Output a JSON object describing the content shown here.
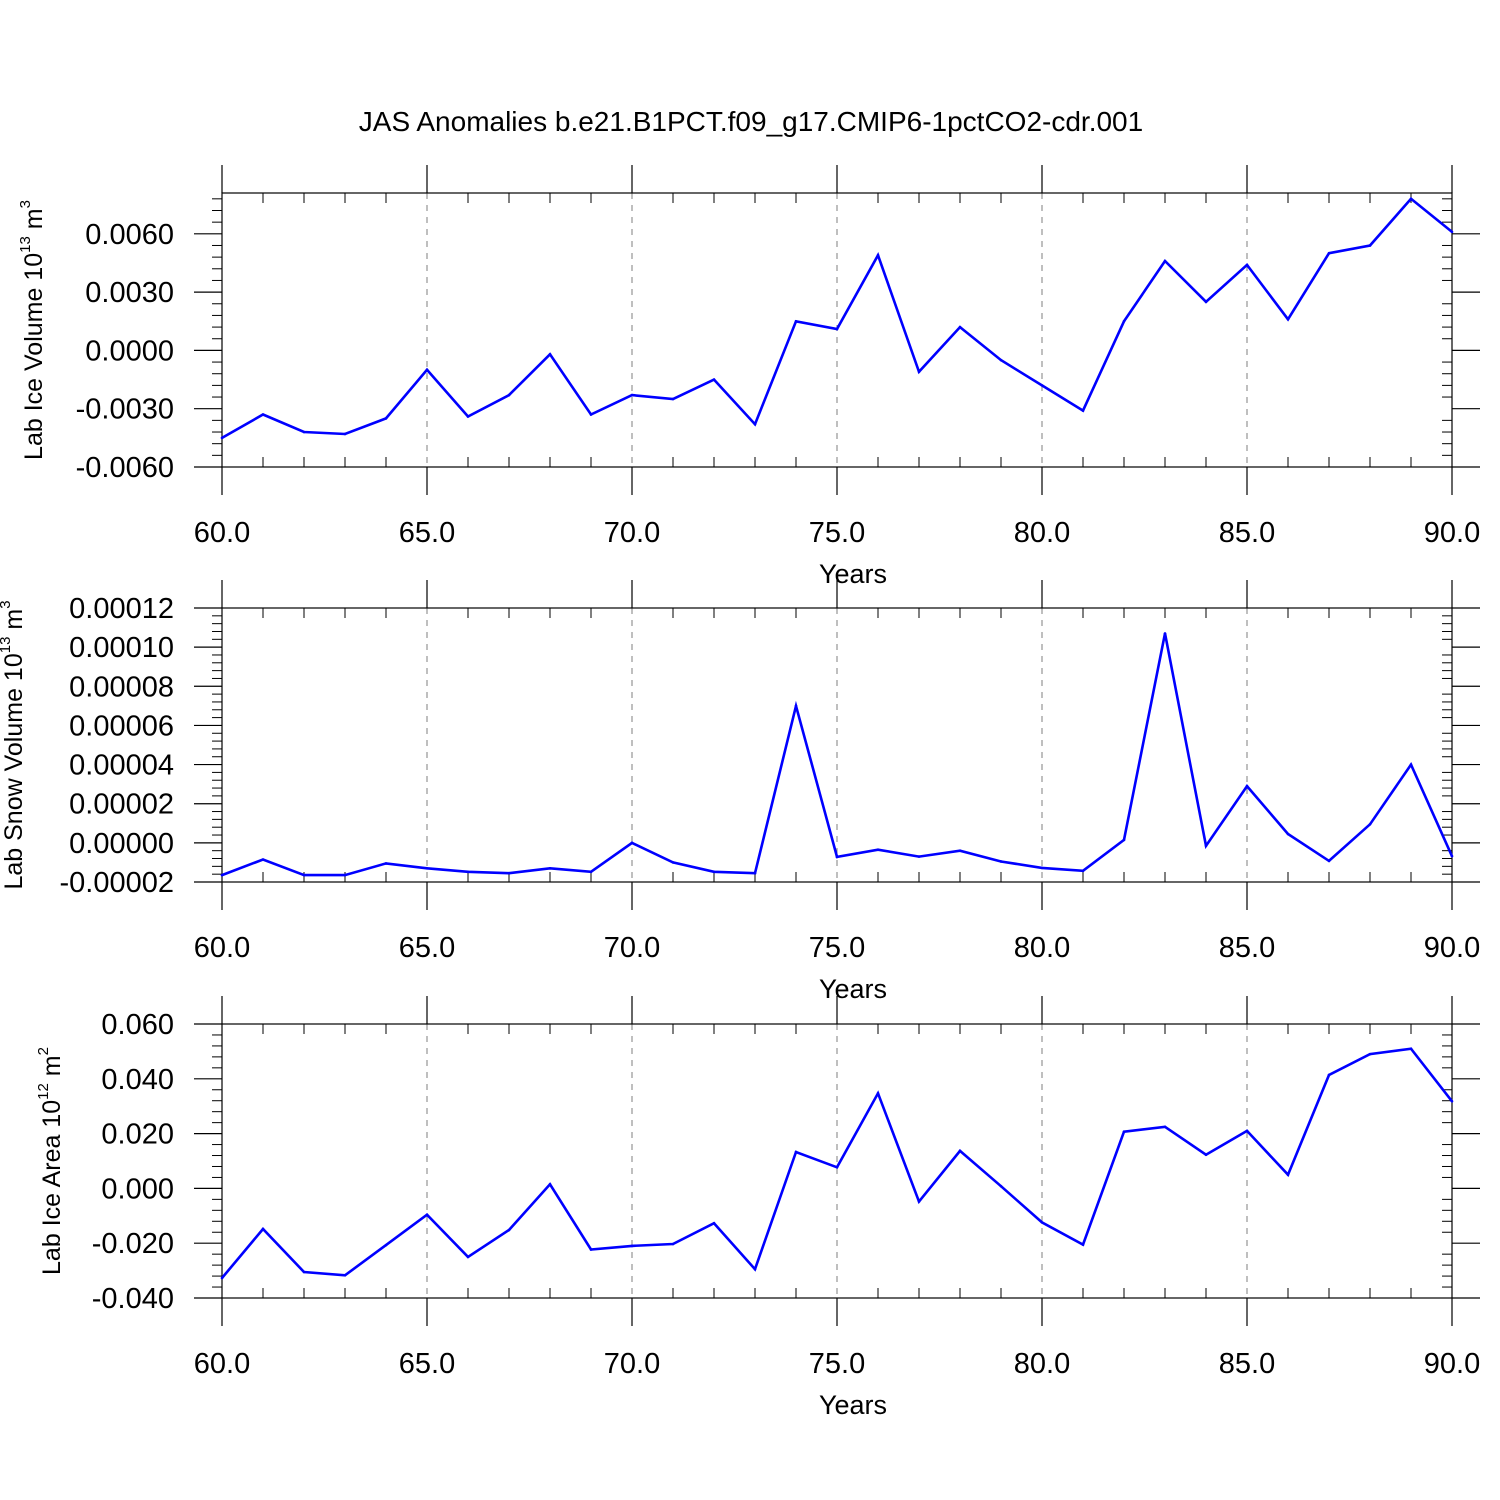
{
  "title": "JAS Anomalies b.e21.B1PCT.f09_g17.CMIP6-1pctCO2-cdr.001",
  "colors": {
    "series": "#0000ff",
    "axis": "#000000",
    "grid": "#7f7f7f"
  },
  "chart_data": [
    {
      "type": "line",
      "xlabel": "Years",
      "ylabel": {
        "text": "Lab Ice Volume 10",
        "exponent": "13",
        "unit": " m",
        "unit_exponent": "3"
      },
      "xlim": [
        60,
        90
      ],
      "ylim": [
        -0.006,
        0.0081
      ],
      "xticks": [
        60,
        65,
        70,
        75,
        80,
        85,
        90
      ],
      "xtick_labels": [
        "60.0",
        "65.0",
        "70.0",
        "75.0",
        "80.0",
        "85.0",
        "90.0"
      ],
      "yticks": [
        -0.006,
        -0.003,
        0.0,
        0.003,
        0.006
      ],
      "ytick_labels": [
        "-0.0060",
        "-0.0030",
        "0.0000",
        "0.0030",
        "0.0060"
      ],
      "grid": "vertical dashed",
      "x": [
        60,
        61,
        62,
        63,
        64,
        65,
        66,
        67,
        68,
        69,
        70,
        71,
        72,
        73,
        74,
        75,
        76,
        77,
        78,
        79,
        80,
        81,
        82,
        83,
        84,
        85,
        86,
        87,
        88,
        89,
        90
      ],
      "y": [
        -0.0045,
        -0.0033,
        -0.0042,
        -0.0043,
        -0.0035,
        -0.001,
        -0.0034,
        -0.0023,
        -0.0002,
        -0.0033,
        -0.0023,
        -0.0025,
        -0.0015,
        -0.0038,
        0.0015,
        0.0011,
        0.0049,
        -0.0011,
        0.0012,
        -0.0005,
        -0.0018,
        -0.0031,
        0.0015,
        0.0046,
        0.0025,
        0.0044,
        0.0016,
        0.005,
        0.0054,
        0.0078,
        0.0061
      ]
    },
    {
      "type": "line",
      "xlabel": "Years",
      "ylabel": {
        "text": "Lab Snow Volume 10",
        "exponent": "13",
        "unit": " m",
        "unit_exponent": "3"
      },
      "xlim": [
        60,
        90
      ],
      "ylim": [
        -2e-05,
        0.00012
      ],
      "xticks": [
        60,
        65,
        70,
        75,
        80,
        85,
        90
      ],
      "xtick_labels": [
        "60.0",
        "65.0",
        "70.0",
        "75.0",
        "80.0",
        "85.0",
        "90.0"
      ],
      "yticks": [
        -2e-05,
        0.0,
        2e-05,
        4e-05,
        6e-05,
        8e-05,
        0.0001,
        0.00012
      ],
      "ytick_labels": [
        "-0.00002",
        "0.00000",
        "0.00002",
        "0.00004",
        "0.00006",
        "0.00008",
        "0.00010",
        "0.00012"
      ],
      "grid": "vertical dashed",
      "x": [
        60,
        61,
        62,
        63,
        64,
        65,
        66,
        67,
        68,
        69,
        70,
        71,
        72,
        73,
        74,
        75,
        76,
        77,
        78,
        79,
        80,
        81,
        82,
        83,
        84,
        85,
        86,
        87,
        88,
        89,
        90
      ],
      "y": [
        -1.65e-05,
        -8.5e-06,
        -1.65e-05,
        -1.65e-05,
        -1.05e-05,
        -1.3e-05,
        -1.48e-05,
        -1.55e-05,
        -1.3e-05,
        -1.48e-05,
        0.0,
        -1e-05,
        -1.48e-05,
        -1.55e-05,
        7e-05,
        -7.2e-06,
        -3.5e-06,
        -7e-06,
        -4e-06,
        -9.5e-06,
        -1.28e-05,
        -1.43e-05,
        1.5e-06,
        0.000107,
        -1.5e-06,
        2.9e-05,
        4.5e-06,
        -9.2e-06,
        9.5e-06,
        4e-05,
        -6.8e-06
      ]
    },
    {
      "type": "line",
      "xlabel": "Years",
      "ylabel": {
        "text": "Lab Ice Area 10",
        "exponent": "12",
        "unit": " m",
        "unit_exponent": "2"
      },
      "xlim": [
        60,
        90
      ],
      "ylim": [
        -0.04,
        0.06
      ],
      "xticks": [
        60,
        65,
        70,
        75,
        80,
        85,
        90
      ],
      "xtick_labels": [
        "60.0",
        "65.0",
        "70.0",
        "75.0",
        "80.0",
        "85.0",
        "90.0"
      ],
      "yticks": [
        -0.04,
        -0.02,
        0.0,
        0.02,
        0.04,
        0.06
      ],
      "ytick_labels": [
        "-0.040",
        "-0.020",
        "0.000",
        "0.020",
        "0.040",
        "0.060"
      ],
      "grid": "vertical dashed",
      "x": [
        60,
        61,
        62,
        63,
        64,
        65,
        66,
        67,
        68,
        69,
        70,
        71,
        72,
        73,
        74,
        75,
        76,
        77,
        78,
        79,
        80,
        81,
        82,
        83,
        84,
        85,
        86,
        87,
        88,
        89,
        90
      ],
      "y": [
        -0.0327,
        -0.0148,
        -0.0305,
        -0.0317,
        -0.0207,
        -0.0096,
        -0.025,
        -0.0152,
        0.0015,
        -0.0223,
        -0.021,
        -0.0203,
        -0.0127,
        -0.0295,
        0.0133,
        0.0077,
        0.0347,
        -0.0048,
        0.0137,
        0.0008,
        -0.0124,
        -0.0205,
        0.0207,
        0.0225,
        0.0123,
        0.021,
        0.005,
        0.0414,
        0.049,
        0.051,
        0.0318
      ]
    }
  ]
}
